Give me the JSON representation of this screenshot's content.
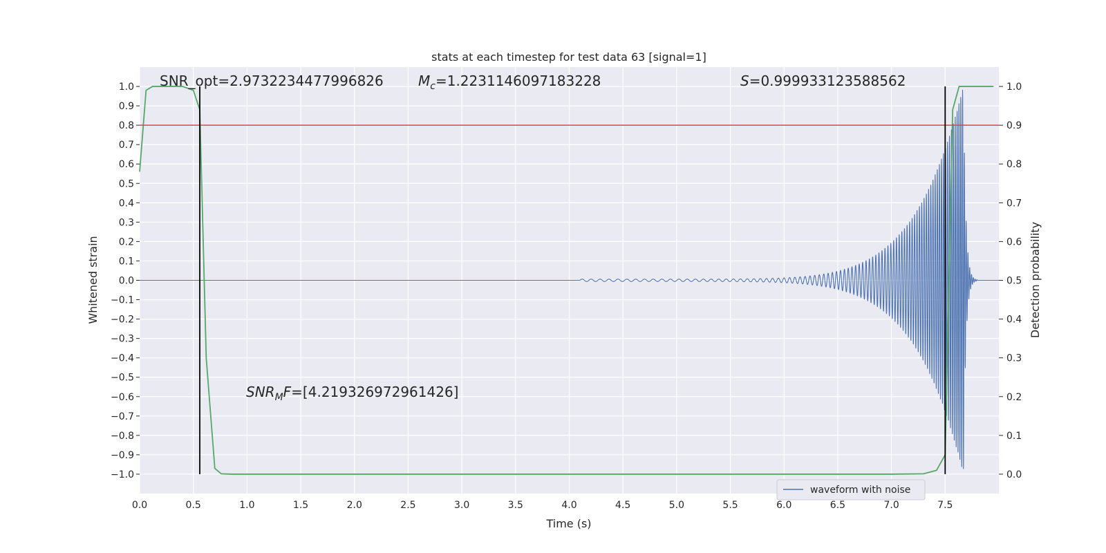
{
  "chart_data": {
    "type": "line",
    "title": "stats at each timestep for test data 63 [signal=1]",
    "xlabel": "Time (s)",
    "ylabel_left": "Whitened strain",
    "ylabel_right": "Detection probability",
    "xlim": [
      0.0,
      8.0
    ],
    "ylim_left": [
      -1.1,
      1.1
    ],
    "ylim_right": [
      -0.05,
      1.05
    ],
    "x_ticks": [
      "0.0",
      "0.5",
      "1.0",
      "1.5",
      "2.0",
      "2.5",
      "3.0",
      "3.5",
      "4.0",
      "4.5",
      "5.0",
      "5.5",
      "6.0",
      "6.5",
      "7.0",
      "7.5"
    ],
    "x_tick_values": [
      0.0,
      0.5,
      1.0,
      1.5,
      2.0,
      2.5,
      3.0,
      3.5,
      4.0,
      4.5,
      5.0,
      5.5,
      6.0,
      6.5,
      7.0,
      7.5
    ],
    "y_left_ticks": [
      "1.0",
      "0.9",
      "0.8",
      "0.7",
      "0.6",
      "0.5",
      "0.4",
      "0.3",
      "0.2",
      "0.1",
      "0.0",
      "−0.1",
      "−0.2",
      "−0.3",
      "−0.4",
      "−0.5",
      "−0.6",
      "−0.7",
      "−0.8",
      "−0.9",
      "−1.0"
    ],
    "y_left_tick_values": [
      1.0,
      0.9,
      0.8,
      0.7,
      0.6,
      0.5,
      0.4,
      0.3,
      0.2,
      0.1,
      0.0,
      -0.1,
      -0.2,
      -0.3,
      -0.4,
      -0.5,
      -0.6,
      -0.7,
      -0.8,
      -0.9,
      -1.0
    ],
    "y_right_ticks": [
      "1.0",
      "0.9",
      "0.8",
      "0.7",
      "0.6",
      "0.5",
      "0.4",
      "0.3",
      "0.2",
      "0.1",
      "0.0"
    ],
    "y_right_tick_values": [
      1.0,
      0.9,
      0.8,
      0.7,
      0.6,
      0.5,
      0.4,
      0.3,
      0.2,
      0.1,
      0.0
    ],
    "grid": true,
    "legend": {
      "placement": "lower-right",
      "entries": [
        "waveform with noise"
      ]
    },
    "annotations": {
      "snr_opt": "SNR_opt=2.9732234477996826",
      "mc_symbol": "M",
      "mc_sub": "c",
      "mc_value": "=1.2231146097183228",
      "s_symbol": "S",
      "s_value": "=0.999933123588562",
      "snr_mf_symbol": "SNR",
      "snr_mf_sub": "M",
      "snr_mf_F": "F",
      "snr_mf_value": "=[4.219326972961426]"
    },
    "threshold": {
      "value": 0.9,
      "axis": "right",
      "color": "#c44e52"
    },
    "vertical_lines": [
      0.56,
      7.5
    ],
    "series": [
      {
        "name": "waveform with noise",
        "axis": "left",
        "color": "#4c72b0",
        "kind": "chirp",
        "chirp": {
          "start": 4.1,
          "merger": 7.67,
          "peak_amplitude": 1.0,
          "ringdown_end": 7.8,
          "f_start": 12,
          "f_end": 60
        }
      },
      {
        "name": "",
        "axis": "right",
        "color": "#55a868",
        "kind": "points",
        "x": [
          0.0,
          0.06,
          0.12,
          0.2,
          0.3,
          0.4,
          0.5,
          0.56,
          0.62,
          0.7,
          0.76,
          0.85,
          1.0,
          2.0,
          3.0,
          4.0,
          5.0,
          6.0,
          7.0,
          7.3,
          7.42,
          7.5,
          7.57,
          7.63,
          7.7,
          7.8,
          7.95
        ],
        "y": [
          0.78,
          0.99,
          1.0,
          1.0,
          1.0,
          1.0,
          0.99,
          0.94,
          0.3,
          0.015,
          0.001,
          0.0,
          0.0,
          0.0,
          0.0,
          0.0,
          0.0,
          0.0,
          0.0,
          0.001,
          0.01,
          0.05,
          0.94,
          1.0,
          1.0,
          1.0,
          1.0
        ]
      }
    ]
  }
}
